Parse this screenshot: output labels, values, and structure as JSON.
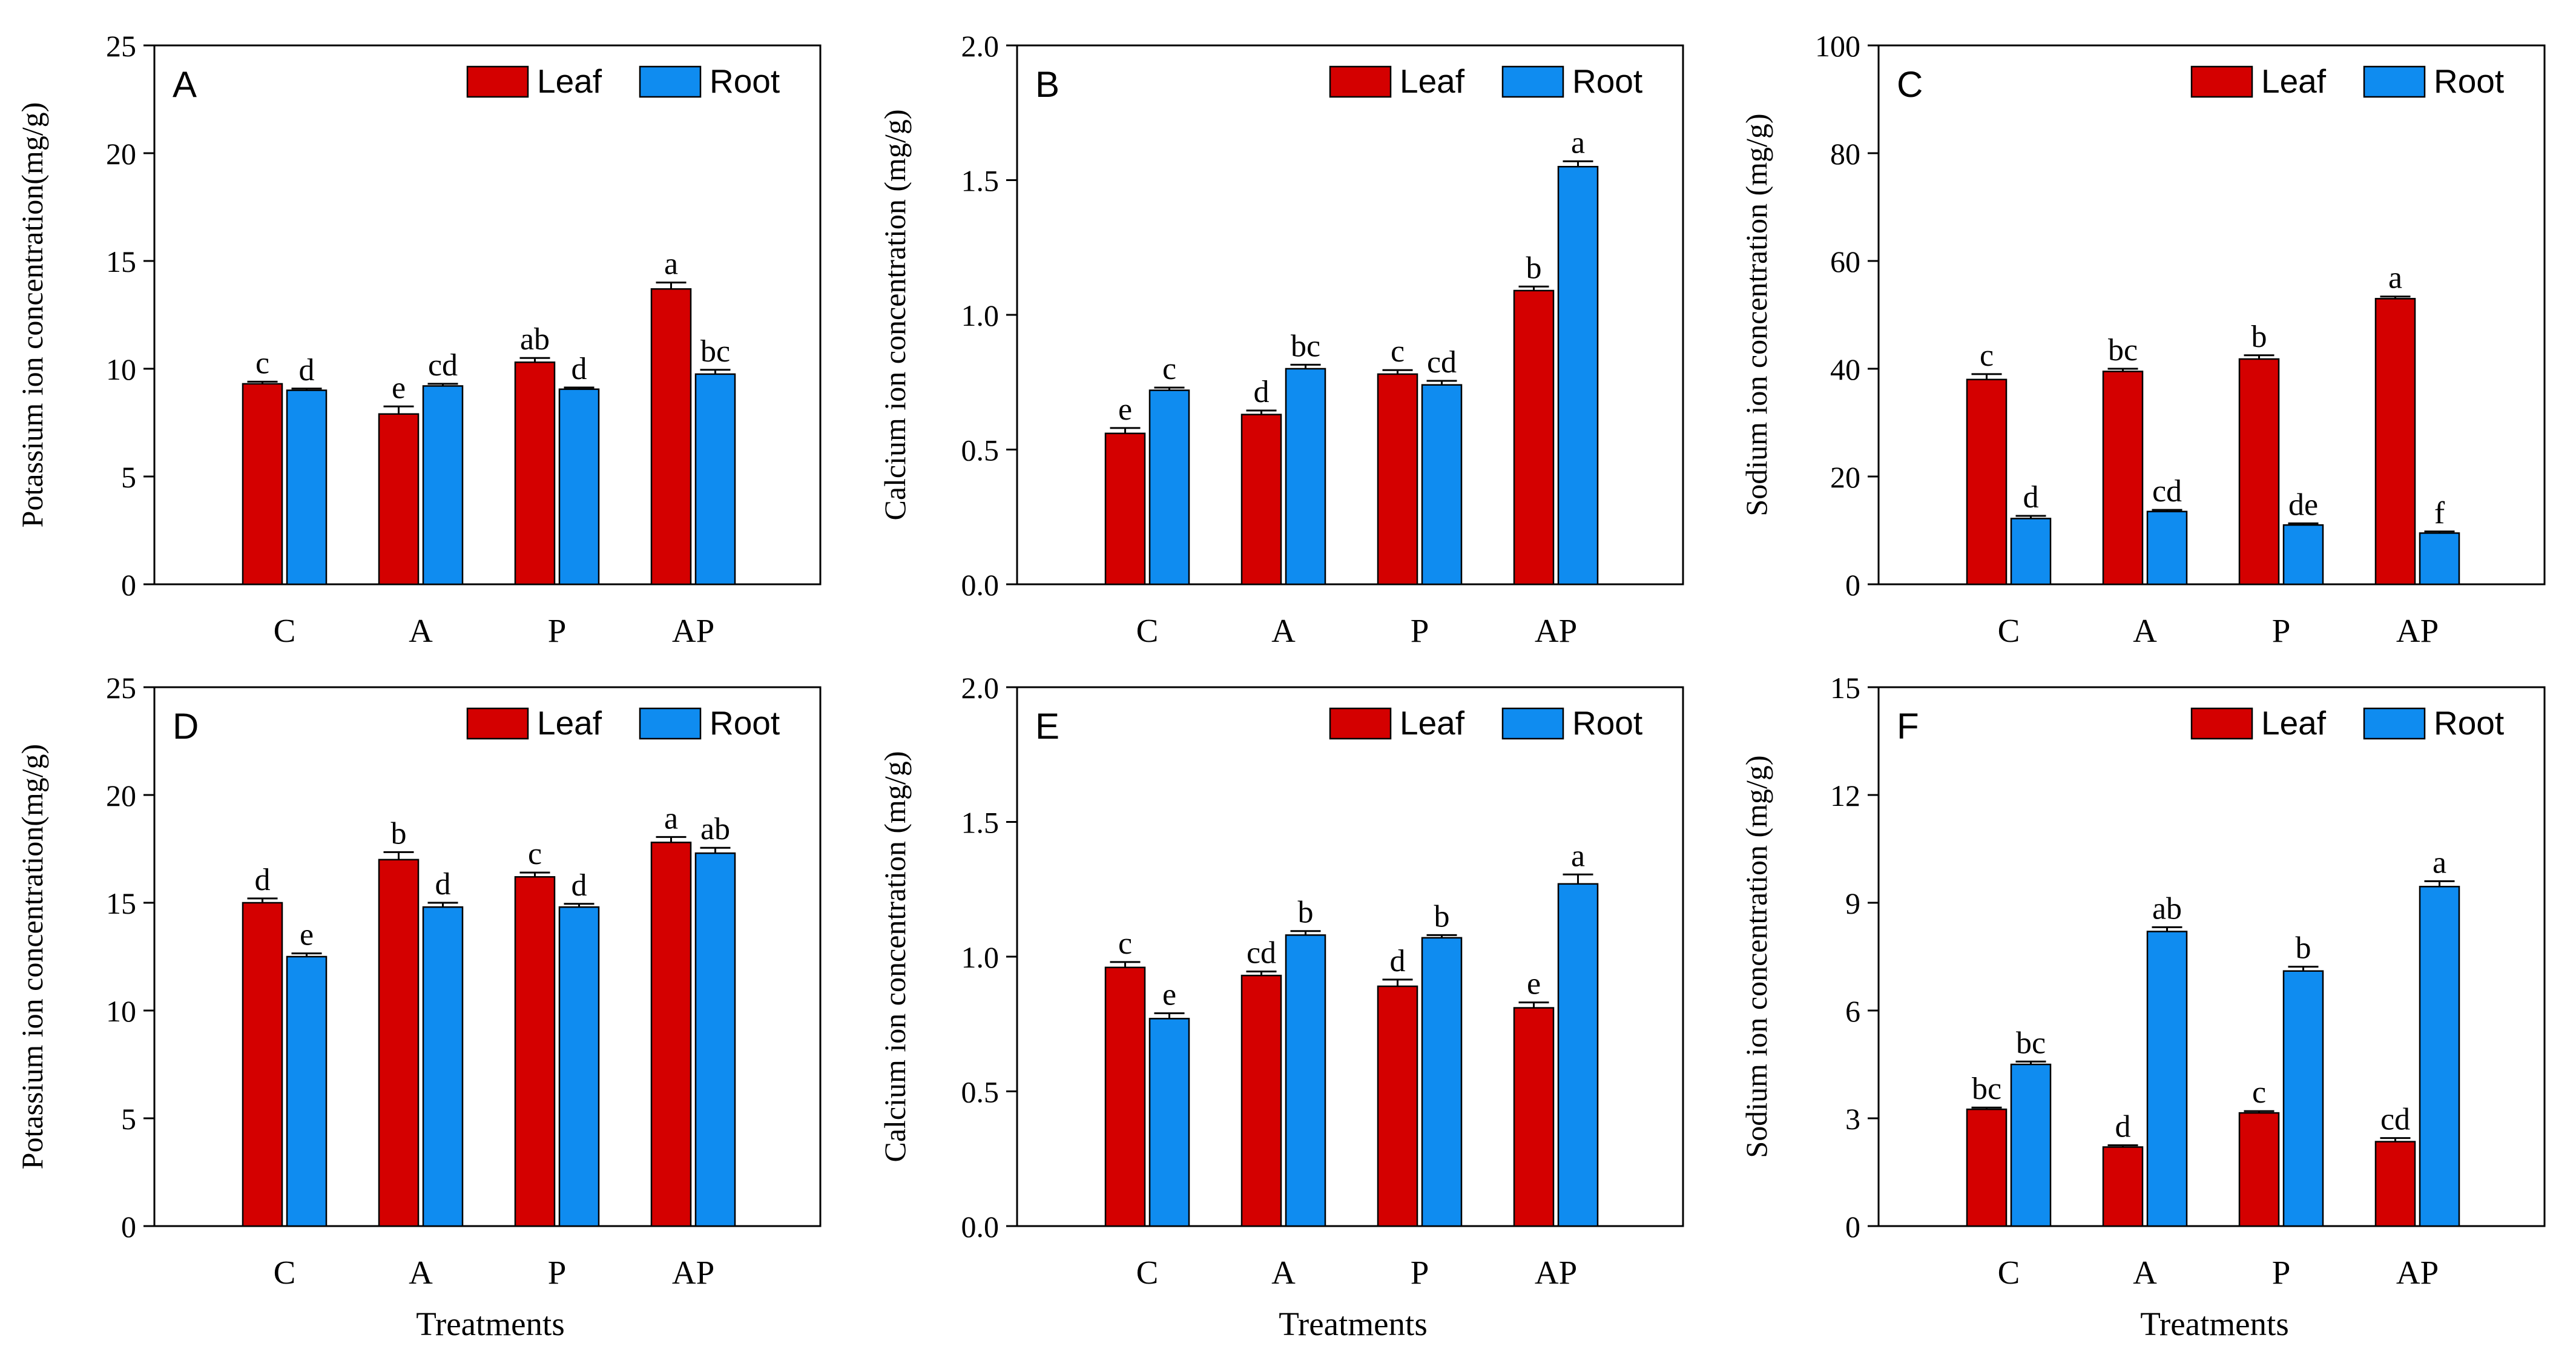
{
  "colors": {
    "leaf": "#d40000",
    "root": "#0f8cf0",
    "axis": "#000000",
    "background": "#ffffff"
  },
  "x_axis_label": "Treatments",
  "chart_data": [
    {
      "type": "bar",
      "panel": "A",
      "categories": [
        "C",
        "A",
        "P",
        "AP"
      ],
      "series": [
        {
          "name": "Leaf",
          "values": [
            9.3,
            7.9,
            10.3,
            13.7
          ],
          "errors": [
            0.1,
            0.35,
            0.2,
            0.3
          ],
          "letters": [
            "c",
            "e",
            "ab",
            "a"
          ]
        },
        {
          "name": "Root",
          "values": [
            9.0,
            9.2,
            9.05,
            9.75
          ],
          "errors": [
            0.08,
            0.1,
            0.08,
            0.2
          ],
          "letters": [
            "d",
            "cd",
            "d",
            "bc"
          ]
        }
      ],
      "title": "",
      "xlabel": "",
      "ylabel": "Potassium ion concentration(mg/g)",
      "ylim": [
        0,
        25
      ],
      "yticks": [
        0,
        5,
        10,
        15,
        20,
        25
      ],
      "ytick_labels": [
        "0",
        "5",
        "10",
        "15",
        "20",
        "25"
      ],
      "legend": "top-right",
      "grid": false
    },
    {
      "type": "bar",
      "panel": "B",
      "categories": [
        "C",
        "A",
        "P",
        "AP"
      ],
      "series": [
        {
          "name": "Leaf",
          "values": [
            0.56,
            0.63,
            0.78,
            1.09
          ],
          "errors": [
            0.02,
            0.015,
            0.015,
            0.015
          ],
          "letters": [
            "e",
            "d",
            "c",
            "b"
          ]
        },
        {
          "name": "Root",
          "values": [
            0.72,
            0.8,
            0.74,
            1.55
          ],
          "errors": [
            0.01,
            0.015,
            0.015,
            0.02
          ],
          "letters": [
            "c",
            "bc",
            "cd",
            "a"
          ]
        }
      ],
      "title": "",
      "xlabel": "",
      "ylabel": "Calcium ion concentration (mg/g)",
      "ylim": [
        0,
        2.0
      ],
      "yticks": [
        0,
        0.5,
        1.0,
        1.5,
        2.0
      ],
      "ytick_labels": [
        "0.0",
        "0.5",
        "1.0",
        "1.5",
        "2.0"
      ],
      "legend": "top-right",
      "grid": false
    },
    {
      "type": "bar",
      "panel": "C",
      "categories": [
        "C",
        "A",
        "P",
        "AP"
      ],
      "series": [
        {
          "name": "Leaf",
          "values": [
            38.0,
            39.5,
            41.8,
            53.0
          ],
          "errors": [
            1.0,
            0.5,
            0.7,
            0.4
          ],
          "letters": [
            "c",
            "bc",
            "b",
            "a"
          ]
        },
        {
          "name": "Root",
          "values": [
            12.2,
            13.5,
            11.0,
            9.5
          ],
          "errors": [
            0.5,
            0.3,
            0.3,
            0.3
          ],
          "letters": [
            "d",
            "cd",
            "de",
            "f"
          ]
        }
      ],
      "title": "",
      "xlabel": "",
      "ylabel": "Sodium ion concentration (mg/g)",
      "ylim": [
        0,
        100
      ],
      "yticks": [
        0,
        20,
        40,
        60,
        80,
        100
      ],
      "ytick_labels": [
        "0",
        "20",
        "40",
        "60",
        "80",
        "100"
      ],
      "legend": "top-right",
      "grid": false
    },
    {
      "type": "bar",
      "panel": "D",
      "categories": [
        "C",
        "A",
        "P",
        "AP"
      ],
      "series": [
        {
          "name": "Leaf",
          "values": [
            15.0,
            17.0,
            16.2,
            17.8
          ],
          "errors": [
            0.2,
            0.35,
            0.2,
            0.25
          ],
          "letters": [
            "d",
            "b",
            "c",
            "a"
          ]
        },
        {
          "name": "Root",
          "values": [
            12.5,
            14.8,
            14.8,
            17.3
          ],
          "errors": [
            0.15,
            0.2,
            0.15,
            0.25
          ],
          "letters": [
            "e",
            "d",
            "d",
            "ab"
          ]
        }
      ],
      "title": "",
      "xlabel": "Treatments",
      "ylabel": "Potassium ion concentration(mg/g)",
      "ylim": [
        0,
        25
      ],
      "yticks": [
        0,
        5,
        10,
        15,
        20,
        25
      ],
      "ytick_labels": [
        "0",
        "5",
        "10",
        "15",
        "20",
        "25"
      ],
      "legend": "top-right",
      "grid": false
    },
    {
      "type": "bar",
      "panel": "E",
      "categories": [
        "C",
        "A",
        "P",
        "AP"
      ],
      "series": [
        {
          "name": "Leaf",
          "values": [
            0.96,
            0.93,
            0.89,
            0.81
          ],
          "errors": [
            0.02,
            0.015,
            0.025,
            0.02
          ],
          "letters": [
            "c",
            "cd",
            "d",
            "e"
          ]
        },
        {
          "name": "Root",
          "values": [
            0.77,
            1.08,
            1.07,
            1.27
          ],
          "errors": [
            0.02,
            0.015,
            0.01,
            0.035
          ],
          "letters": [
            "e",
            "b",
            "b",
            "a"
          ]
        }
      ],
      "title": "",
      "xlabel": "Treatments",
      "ylabel": "Calcium ion concentration (mg/g)",
      "ylim": [
        0,
        2.0
      ],
      "yticks": [
        0,
        0.5,
        1.0,
        1.5,
        2.0
      ],
      "ytick_labels": [
        "0.0",
        "0.5",
        "1.0",
        "1.5",
        "2.0"
      ],
      "legend": "top-right",
      "grid": false
    },
    {
      "type": "bar",
      "panel": "F",
      "categories": [
        "C",
        "A",
        "P",
        "AP"
      ],
      "series": [
        {
          "name": "Leaf",
          "values": [
            3.25,
            2.2,
            3.15,
            2.35
          ],
          "errors": [
            0.05,
            0.05,
            0.05,
            0.1
          ],
          "letters": [
            "bc",
            "d",
            "c",
            "cd"
          ]
        },
        {
          "name": "Root",
          "values": [
            4.5,
            8.2,
            7.1,
            9.45
          ],
          "errors": [
            0.08,
            0.12,
            0.12,
            0.15
          ],
          "letters": [
            "bc",
            "ab",
            "b",
            "a"
          ]
        }
      ],
      "title": "",
      "xlabel": "Treatments",
      "ylabel": "Sodium ion concentration (mg/g)",
      "ylim": [
        0,
        15
      ],
      "yticks": [
        0,
        3,
        6,
        9,
        12,
        15
      ],
      "ytick_labels": [
        "0",
        "3",
        "6",
        "9",
        "12",
        "15"
      ],
      "legend": "top-right",
      "grid": false
    }
  ]
}
